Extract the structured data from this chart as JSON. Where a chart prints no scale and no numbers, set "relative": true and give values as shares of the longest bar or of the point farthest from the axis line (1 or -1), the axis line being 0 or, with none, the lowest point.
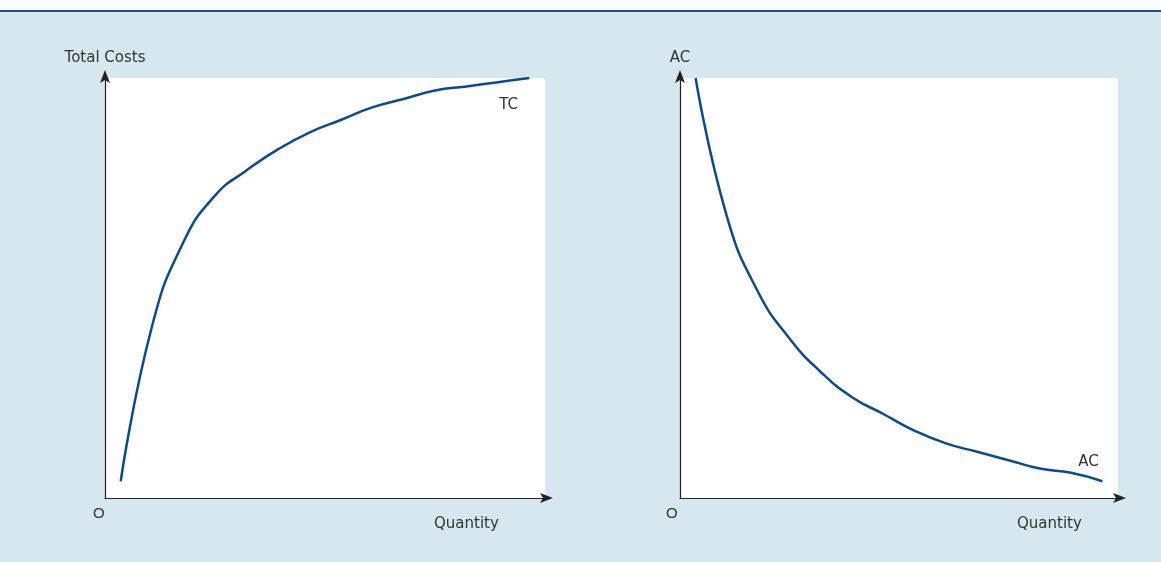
{
  "chart_data": [
    {
      "type": "line",
      "relative": true,
      "xlabel": "Quantity",
      "ylabel": "Total Costs",
      "annotations": [
        "O"
      ],
      "marker": "none",
      "categories": [
        null,
        null,
        null,
        null,
        null,
        null,
        null,
        null,
        null,
        null,
        null,
        null,
        null,
        null
      ],
      "series": [
        {
          "name": "TC",
          "color": "#0b4a8b",
          "values": [
            0.04,
            0.41,
            0.61,
            0.72,
            0.78,
            0.83,
            0.87,
            0.9,
            0.93,
            0.95,
            0.97,
            0.98,
            0.99,
            1
          ]
        }
      ]
    },
    {
      "type": "line",
      "relative": true,
      "xlabel": "Quantity",
      "ylabel": "AC",
      "annotations": [
        "O"
      ],
      "marker": "none",
      "categories": [
        null,
        null,
        null,
        null,
        null,
        null,
        null,
        null,
        null,
        null,
        null,
        null,
        null,
        null
      ],
      "series": [
        {
          "name": "AC",
          "color": "#0b4a8b",
          "values": [
            1,
            0.67,
            0.49,
            0.38,
            0.3,
            0.24,
            0.2,
            0.16,
            0.13,
            0.11,
            0.09,
            0.07,
            0.06,
            0.04
          ]
        }
      ]
    }
  ]
}
